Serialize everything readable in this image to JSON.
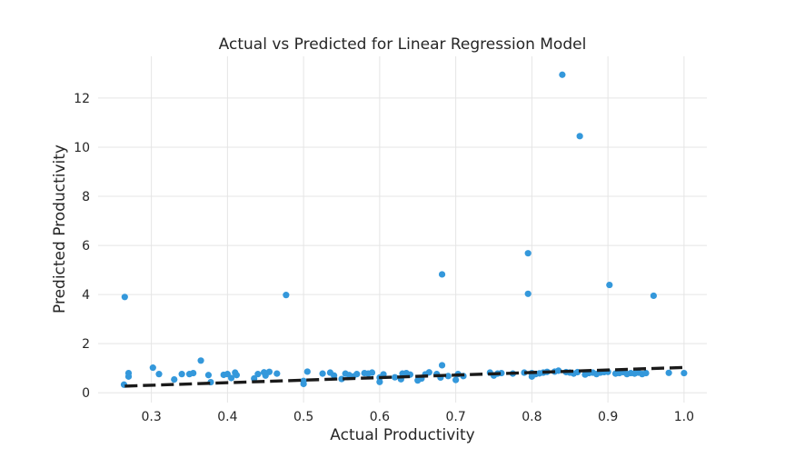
{
  "chart_data": {
    "type": "scatter",
    "title": "Actual vs Predicted for Linear Regression Model",
    "xlabel": "Actual Productivity",
    "ylabel": "Predicted Productivity",
    "xlim": [
      0.23,
      1.03
    ],
    "ylim": [
      -0.4,
      13.7
    ],
    "xticks": [
      0.3,
      0.4,
      0.5,
      0.6,
      0.7,
      0.8,
      0.9,
      1.0
    ],
    "xtick_labels": [
      "0.3",
      "0.4",
      "0.5",
      "0.6",
      "0.7",
      "0.8",
      "0.9",
      "1.0"
    ],
    "yticks": [
      0,
      2,
      4,
      6,
      8,
      10,
      12
    ],
    "ytick_labels": [
      "0",
      "2",
      "4",
      "6",
      "8",
      "10",
      "12"
    ],
    "grid": true,
    "point_color": "#3498db",
    "line_color": "#1a1a1a",
    "fit_line": {
      "x": [
        0.265,
        1.0
      ],
      "y": [
        0.27,
        1.03
      ]
    },
    "points": [
      [
        0.265,
        3.9
      ],
      [
        0.264,
        0.33
      ],
      [
        0.27,
        0.66
      ],
      [
        0.27,
        0.8
      ],
      [
        0.302,
        1.02
      ],
      [
        0.31,
        0.76
      ],
      [
        0.33,
        0.54
      ],
      [
        0.34,
        0.76
      ],
      [
        0.35,
        0.76
      ],
      [
        0.355,
        0.8
      ],
      [
        0.365,
        1.31
      ],
      [
        0.375,
        0.72
      ],
      [
        0.378,
        0.43
      ],
      [
        0.395,
        0.73
      ],
      [
        0.4,
        0.76
      ],
      [
        0.405,
        0.6
      ],
      [
        0.41,
        0.82
      ],
      [
        0.412,
        0.72
      ],
      [
        0.435,
        0.58
      ],
      [
        0.44,
        0.76
      ],
      [
        0.448,
        0.83
      ],
      [
        0.45,
        0.7
      ],
      [
        0.455,
        0.85
      ],
      [
        0.465,
        0.78
      ],
      [
        0.477,
        3.98
      ],
      [
        0.5,
        0.36
      ],
      [
        0.5,
        0.48
      ],
      [
        0.505,
        0.86
      ],
      [
        0.525,
        0.78
      ],
      [
        0.535,
        0.82
      ],
      [
        0.54,
        0.7
      ],
      [
        0.55,
        0.56
      ],
      [
        0.555,
        0.78
      ],
      [
        0.56,
        0.72
      ],
      [
        0.565,
        0.66
      ],
      [
        0.57,
        0.76
      ],
      [
        0.58,
        0.8
      ],
      [
        0.585,
        0.78
      ],
      [
        0.59,
        0.82
      ],
      [
        0.6,
        0.44
      ],
      [
        0.6,
        0.62
      ],
      [
        0.605,
        0.75
      ],
      [
        0.62,
        0.63
      ],
      [
        0.628,
        0.55
      ],
      [
        0.63,
        0.78
      ],
      [
        0.635,
        0.8
      ],
      [
        0.64,
        0.74
      ],
      [
        0.65,
        0.5
      ],
      [
        0.655,
        0.58
      ],
      [
        0.66,
        0.75
      ],
      [
        0.665,
        0.83
      ],
      [
        0.675,
        0.76
      ],
      [
        0.68,
        0.62
      ],
      [
        0.682,
        4.82
      ],
      [
        0.682,
        1.12
      ],
      [
        0.69,
        0.68
      ],
      [
        0.7,
        0.52
      ],
      [
        0.703,
        0.76
      ],
      [
        0.71,
        0.68
      ],
      [
        0.745,
        0.82
      ],
      [
        0.75,
        0.7
      ],
      [
        0.755,
        0.78
      ],
      [
        0.76,
        0.8
      ],
      [
        0.775,
        0.78
      ],
      [
        0.79,
        0.82
      ],
      [
        0.795,
        5.68
      ],
      [
        0.795,
        4.03
      ],
      [
        0.8,
        0.66
      ],
      [
        0.8,
        0.8
      ],
      [
        0.805,
        0.76
      ],
      [
        0.81,
        0.79
      ],
      [
        0.815,
        0.82
      ],
      [
        0.82,
        0.85
      ],
      [
        0.83,
        0.86
      ],
      [
        0.835,
        0.9
      ],
      [
        0.84,
        12.95
      ],
      [
        0.845,
        0.84
      ],
      [
        0.85,
        0.82
      ],
      [
        0.855,
        0.78
      ],
      [
        0.86,
        0.84
      ],
      [
        0.863,
        10.45
      ],
      [
        0.87,
        0.74
      ],
      [
        0.875,
        0.8
      ],
      [
        0.88,
        0.82
      ],
      [
        0.885,
        0.76
      ],
      [
        0.89,
        0.82
      ],
      [
        0.895,
        0.84
      ],
      [
        0.9,
        0.85
      ],
      [
        0.902,
        4.39
      ],
      [
        0.91,
        0.78
      ],
      [
        0.915,
        0.8
      ],
      [
        0.92,
        0.84
      ],
      [
        0.925,
        0.76
      ],
      [
        0.93,
        0.8
      ],
      [
        0.935,
        0.78
      ],
      [
        0.94,
        0.82
      ],
      [
        0.945,
        0.76
      ],
      [
        0.95,
        0.8
      ],
      [
        0.96,
        3.95
      ],
      [
        0.98,
        0.81
      ],
      [
        1.0,
        0.8
      ]
    ]
  }
}
